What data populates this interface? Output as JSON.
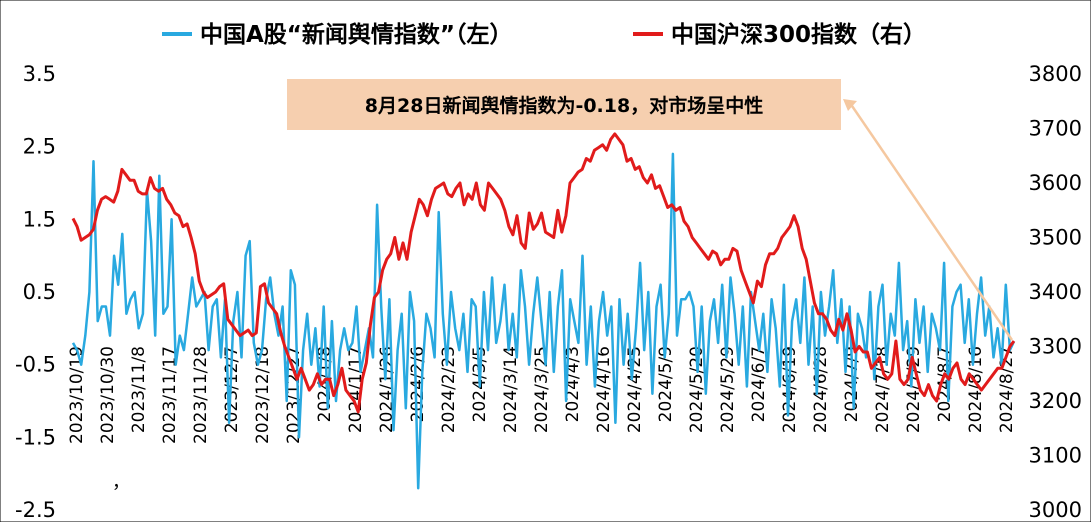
{
  "chart_data": {
    "type": "line",
    "legend_position": "top",
    "grid": false,
    "series": [
      {
        "name": "中国A股“新闻舆情指数”（左）",
        "axis": "left",
        "color": "#29A9E0",
        "values": [
          -0.2,
          -0.3,
          -0.5,
          -0.1,
          0.5,
          2.3,
          0.1,
          0.3,
          0.3,
          -0.1,
          1.0,
          0.6,
          1.3,
          0.2,
          0.4,
          0.5,
          0.0,
          0.2,
          1.9,
          1.2,
          -0.1,
          2.1,
          0.2,
          0.3,
          1.5,
          -0.5,
          -0.1,
          -0.3,
          0.2,
          0.7,
          0.3,
          0.4,
          0.5,
          -0.3,
          0.3,
          0.4,
          -0.4,
          0.4,
          -1.3,
          0.1,
          0.5,
          -0.4,
          1.0,
          1.2,
          -0.2,
          -0.5,
          -0.3,
          0.4,
          0.7,
          0.2,
          -0.1,
          0.3,
          -1.0,
          0.8,
          0.6,
          -1.5,
          -0.3,
          0.2,
          -0.5,
          0.0,
          -0.8,
          0.3,
          -1.1,
          0.1,
          -1.0,
          -0.3,
          0.0,
          -0.3,
          -0.2,
          0.3,
          -0.6,
          -0.3,
          0.0,
          -0.4,
          1.7,
          0.3,
          -0.7,
          0.4,
          -1.4,
          -0.3,
          0.2,
          -1.1,
          0.5,
          0.1,
          -2.2,
          -0.6,
          0.2,
          0.0,
          -0.4,
          1.6,
          0.2,
          -0.5,
          0.5,
          0.0,
          -0.3,
          0.2,
          -0.6,
          0.4,
          0.3,
          -0.8,
          0.5,
          -0.3,
          0.7,
          -0.2,
          0.1,
          0.6,
          -0.3,
          0.2,
          -0.4,
          0.8,
          0.3,
          -0.5,
          0.2,
          0.7,
          0.1,
          -0.5,
          0.5,
          -0.6,
          0.3,
          0.8,
          -1.0,
          0.4,
          0.1,
          -0.2,
          1.0,
          -0.5,
          0.3,
          -0.8,
          0.1,
          0.5,
          -0.1,
          0.3,
          -1.3,
          0.4,
          -0.5,
          0.2,
          -0.7,
          0.0,
          0.9,
          -0.3,
          0.5,
          -0.9,
          0.3,
          0.6,
          -0.4,
          0.2,
          2.4,
          -0.1,
          0.4,
          0.4,
          0.5,
          0.3,
          -0.6,
          0.3,
          -0.9,
          0.1,
          0.4,
          -0.2,
          0.6,
          -0.4,
          0.7,
          0.2,
          -0.5,
          0.3,
          -0.8,
          0.5,
          0.1,
          -0.3,
          0.2,
          -0.6,
          0.4,
          0.0,
          -0.8,
          0.6,
          -1.2,
          0.1,
          0.4,
          -0.2,
          0.7,
          -0.5,
          0.3,
          -0.9,
          0.5,
          -0.1,
          0.3,
          0.8,
          -0.2,
          0.4,
          -0.6,
          0.3,
          -1.1,
          0.2,
          0.0,
          -0.4,
          0.5,
          -0.7,
          0.3,
          0.6,
          -0.5,
          0.2,
          -0.1,
          0.9,
          -0.3,
          0.1,
          -0.8,
          0.4,
          -0.2,
          0.3,
          -0.6,
          0.2,
          0.0,
          -0.3,
          0.9,
          -1.0,
          0.3,
          0.5,
          0.6,
          -0.2,
          0.4,
          -0.5,
          0.2,
          0.7,
          -0.1,
          0.3,
          -0.4,
          0.0,
          -0.5,
          0.6,
          -0.3,
          -0.18
        ]
      },
      {
        "name": "中国沪深300指数（右）",
        "axis": "right",
        "color": "#E11B1B",
        "values": [
          3535,
          3520,
          3495,
          3500,
          3505,
          3515,
          3550,
          3570,
          3575,
          3570,
          3565,
          3585,
          3625,
          3615,
          3605,
          3605,
          3585,
          3580,
          3580,
          3610,
          3590,
          3585,
          3590,
          3570,
          3560,
          3545,
          3540,
          3520,
          3525,
          3500,
          3470,
          3420,
          3400,
          3390,
          3395,
          3400,
          3410,
          3415,
          3350,
          3340,
          3330,
          3320,
          3325,
          3330,
          3320,
          3325,
          3410,
          3415,
          3380,
          3370,
          3360,
          3325,
          3300,
          3280,
          3260,
          3240,
          3260,
          3240,
          3220,
          3230,
          3250,
          3230,
          3240,
          3240,
          3210,
          3230,
          3260,
          3220,
          3210,
          3200,
          3180,
          3240,
          3270,
          3340,
          3390,
          3400,
          3440,
          3460,
          3470,
          3500,
          3460,
          3490,
          3460,
          3510,
          3540,
          3570,
          3560,
          3540,
          3570,
          3590,
          3595,
          3600,
          3580,
          3575,
          3590,
          3600,
          3560,
          3580,
          3570,
          3600,
          3560,
          3550,
          3600,
          3590,
          3580,
          3570,
          3550,
          3520,
          3505,
          3540,
          3490,
          3480,
          3545,
          3515,
          3525,
          3545,
          3510,
          3505,
          3500,
          3550,
          3510,
          3540,
          3600,
          3610,
          3620,
          3625,
          3645,
          3640,
          3660,
          3665,
          3670,
          3660,
          3680,
          3690,
          3680,
          3670,
          3640,
          3645,
          3625,
          3630,
          3610,
          3600,
          3615,
          3590,
          3595,
          3575,
          3555,
          3560,
          3550,
          3555,
          3530,
          3520,
          3500,
          3490,
          3480,
          3470,
          3460,
          3475,
          3470,
          3450,
          3460,
          3460,
          3480,
          3475,
          3440,
          3420,
          3400,
          3380,
          3420,
          3410,
          3450,
          3470,
          3470,
          3480,
          3500,
          3510,
          3520,
          3540,
          3520,
          3480,
          3460,
          3420,
          3380,
          3360,
          3360,
          3350,
          3330,
          3320,
          3350,
          3330,
          3360,
          3330,
          3290,
          3300,
          3290,
          3290,
          3260,
          3270,
          3280,
          3250,
          3240,
          3250,
          3310,
          3240,
          3230,
          3240,
          3280,
          3250,
          3220,
          3210,
          3230,
          3210,
          3200,
          3230,
          3250,
          3240,
          3260,
          3270,
          3240,
          3230,
          3250,
          3240,
          3230,
          3220,
          3230,
          3240,
          3250,
          3260,
          3260,
          3280,
          3300,
          3310
        ]
      }
    ],
    "x_tick_labels": [
      "2023/10/19",
      "2023/10/30",
      "2023/11/8",
      "2023/11/17",
      "2023/11/28",
      "2023/12/7",
      "2023/12/18",
      "2023/12/27",
      "2024/1/8",
      "2024/1/17",
      "2024/1/26",
      "2024/2/6",
      "2024/2/23",
      "2024/3/5",
      "2024/3/14",
      "2024/3/25",
      "2024/4/3",
      "2024/4/16",
      "2024/4/25",
      "2024/5/9",
      "2024/5/20",
      "2024/5/29",
      "2024/6/7",
      "2024/6/19",
      "2024/6/28",
      "2024/7/9",
      "2024/7/18",
      "2024/7/29",
      "2024/8/7",
      "2024/8/16",
      "2024/8/27"
    ],
    "y_left": {
      "min": -2.5,
      "max": 3.5,
      "ticks": [
        "3.5",
        "2.5",
        "1.5",
        "0.5",
        "-0.5",
        "-1.5",
        "-2.5"
      ]
    },
    "y_right": {
      "min": 3000,
      "max": 3800,
      "ticks": [
        "3800",
        "3700",
        "3600",
        "3500",
        "3400",
        "3300",
        "3200",
        "3100",
        "3000"
      ]
    },
    "annotation": {
      "text": "8月28日新闻舆情指数为-0.18，对市场呈中性",
      "background": "#F6CFAF",
      "arrow_color": "#F5C8A0"
    },
    "stray_mark": "，"
  }
}
